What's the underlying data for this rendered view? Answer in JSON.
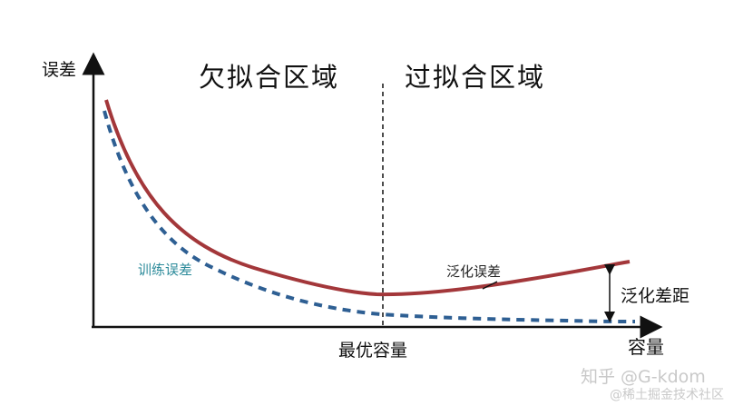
{
  "axes": {
    "y_label": "误差",
    "x_label": "容量"
  },
  "regions": {
    "underfit": "欠拟合区域",
    "overfit": "过拟合区域"
  },
  "optimal_capacity": "最优容量",
  "curves": {
    "training_error": {
      "label": "训练误差",
      "color": "#2e5f93",
      "style": "dashed"
    },
    "generalization_error": {
      "label": "泛化误差",
      "color": "#a3373a",
      "style": "solid"
    }
  },
  "generalization_gap": "泛化差距",
  "watermark": {
    "line1": "知乎 @G-kdom",
    "line2": "@稀土掘金技术社区"
  }
}
